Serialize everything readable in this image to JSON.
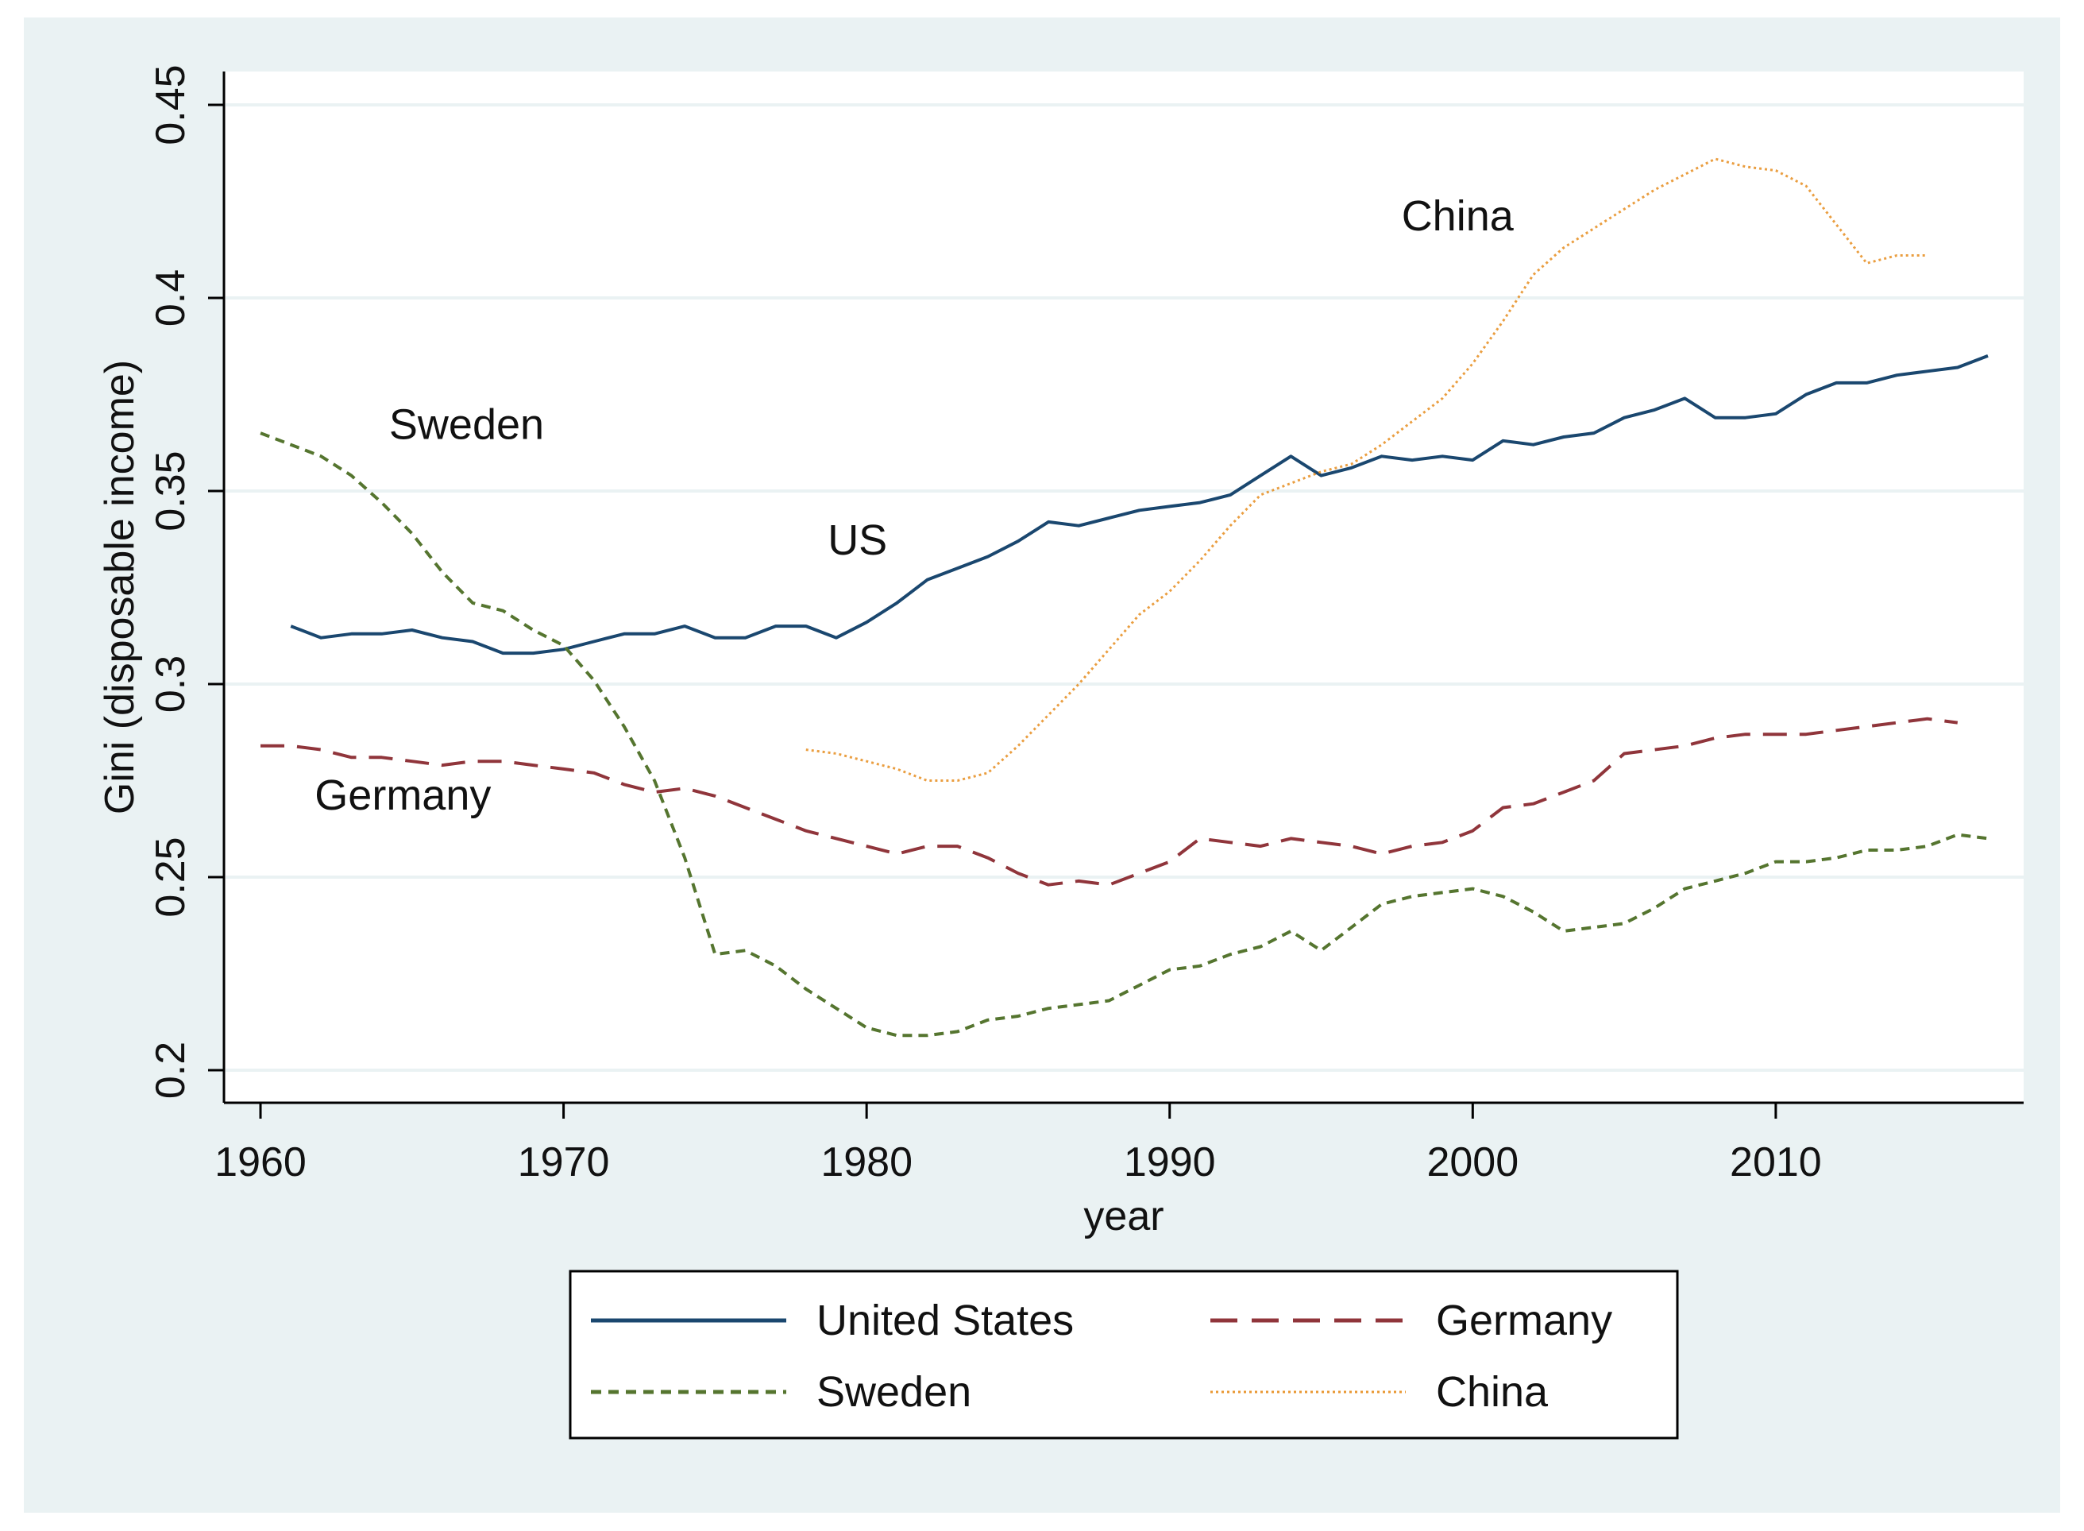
{
  "chart_data": {
    "type": "line",
    "title": "",
    "xlabel": "year",
    "ylabel": "Gini (disposable income)",
    "xlim": [
      1960,
      2017
    ],
    "ylim": [
      0.2,
      0.45
    ],
    "x_ticks": [
      1960,
      1970,
      1980,
      1990,
      2000,
      2010
    ],
    "x_tick_labels": [
      "1960",
      "1970",
      "1980",
      "1990",
      "2000",
      "2010"
    ],
    "y_ticks": [
      0.2,
      0.25,
      0.3,
      0.35,
      0.4,
      0.45
    ],
    "y_tick_labels": [
      "0.2",
      "0.25",
      "0.3",
      "0.35",
      "0.4",
      "0.45"
    ],
    "grid": true,
    "legend_position": "bottom",
    "colors": {
      "background": "#eaf2f3",
      "plot_background": "#ffffff",
      "grid": "#eaf2f3",
      "axis": "#000000",
      "us": "#1a476f",
      "germany": "#90353b",
      "sweden": "#55752f",
      "china": "#e37e00"
    },
    "series": [
      {
        "name": "United States",
        "label": "US",
        "style": "solid",
        "x": [
          1961,
          1962,
          1963,
          1964,
          1965,
          1966,
          1967,
          1968,
          1969,
          1970,
          1971,
          1972,
          1973,
          1974,
          1975,
          1976,
          1977,
          1978,
          1979,
          1980,
          1981,
          1982,
          1983,
          1984,
          1985,
          1986,
          1987,
          1988,
          1989,
          1990,
          1991,
          1992,
          1993,
          1994,
          1995,
          1996,
          1997,
          1998,
          1999,
          2000,
          2001,
          2002,
          2003,
          2004,
          2005,
          2006,
          2007,
          2008,
          2009,
          2010,
          2011,
          2012,
          2013,
          2014,
          2015,
          2016,
          2017
        ],
        "values": [
          0.315,
          0.312,
          0.313,
          0.313,
          0.314,
          0.312,
          0.311,
          0.308,
          0.308,
          0.309,
          0.311,
          0.313,
          0.313,
          0.315,
          0.312,
          0.312,
          0.315,
          0.315,
          0.312,
          0.316,
          0.321,
          0.327,
          0.33,
          0.333,
          0.337,
          0.342,
          0.341,
          0.343,
          0.345,
          0.346,
          0.347,
          0.349,
          0.354,
          0.359,
          0.354,
          0.356,
          0.359,
          0.358,
          0.359,
          0.358,
          0.363,
          0.362,
          0.364,
          0.365,
          0.369,
          0.371,
          0.374,
          0.369,
          0.369,
          0.37,
          0.375,
          0.378,
          0.378,
          0.38,
          0.381,
          0.382,
          0.385
        ]
      },
      {
        "name": "Germany",
        "label": "Germany",
        "style": "dashed",
        "x": [
          1960,
          1961,
          1962,
          1963,
          1964,
          1965,
          1966,
          1967,
          1968,
          1969,
          1970,
          1971,
          1972,
          1973,
          1974,
          1975,
          1976,
          1977,
          1978,
          1979,
          1980,
          1981,
          1982,
          1983,
          1984,
          1985,
          1986,
          1987,
          1988,
          1989,
          1990,
          1991,
          1992,
          1993,
          1994,
          1995,
          1996,
          1997,
          1998,
          1999,
          2000,
          2001,
          2002,
          2003,
          2004,
          2005,
          2006,
          2007,
          2008,
          2009,
          2010,
          2011,
          2012,
          2013,
          2014,
          2015,
          2016
        ],
        "values": [
          0.284,
          0.284,
          0.283,
          0.281,
          0.281,
          0.28,
          0.279,
          0.28,
          0.28,
          0.279,
          0.278,
          0.277,
          0.274,
          0.272,
          0.273,
          0.271,
          0.268,
          0.265,
          0.262,
          0.26,
          0.258,
          0.256,
          0.258,
          0.258,
          0.255,
          0.251,
          0.248,
          0.249,
          0.248,
          0.251,
          0.254,
          0.26,
          0.259,
          0.258,
          0.26,
          0.259,
          0.258,
          0.256,
          0.258,
          0.259,
          0.262,
          0.268,
          0.269,
          0.272,
          0.275,
          0.282,
          0.283,
          0.284,
          0.286,
          0.287,
          0.287,
          0.287,
          0.288,
          0.289,
          0.29,
          0.291,
          0.29
        ]
      },
      {
        "name": "Sweden",
        "label": "Sweden",
        "style": "short-dashed",
        "x": [
          1960,
          1961,
          1962,
          1963,
          1964,
          1965,
          1966,
          1967,
          1968,
          1969,
          1970,
          1971,
          1972,
          1973,
          1974,
          1975,
          1976,
          1977,
          1978,
          1979,
          1980,
          1981,
          1982,
          1983,
          1984,
          1985,
          1986,
          1987,
          1988,
          1989,
          1990,
          1991,
          1992,
          1993,
          1994,
          1995,
          1996,
          1997,
          1998,
          1999,
          2000,
          2001,
          2002,
          2003,
          2004,
          2005,
          2006,
          2007,
          2008,
          2009,
          2010,
          2011,
          2012,
          2013,
          2014,
          2015,
          2016,
          2017
        ],
        "values": [
          0.365,
          0.362,
          0.359,
          0.354,
          0.347,
          0.339,
          0.329,
          0.321,
          0.319,
          0.314,
          0.31,
          0.301,
          0.289,
          0.275,
          0.255,
          0.23,
          0.231,
          0.227,
          0.221,
          0.216,
          0.211,
          0.209,
          0.209,
          0.21,
          0.213,
          0.214,
          0.216,
          0.217,
          0.218,
          0.222,
          0.226,
          0.227,
          0.23,
          0.232,
          0.236,
          0.231,
          0.237,
          0.243,
          0.245,
          0.246,
          0.247,
          0.245,
          0.241,
          0.236,
          0.237,
          0.238,
          0.242,
          0.247,
          0.249,
          0.251,
          0.254,
          0.254,
          0.255,
          0.257,
          0.257,
          0.258,
          0.261,
          0.26
        ]
      },
      {
        "name": "China",
        "label": "China",
        "style": "dotted",
        "x": [
          1978,
          1979,
          1980,
          1981,
          1982,
          1983,
          1984,
          1985,
          1986,
          1987,
          1988,
          1989,
          1990,
          1991,
          1992,
          1993,
          1994,
          1995,
          1996,
          1997,
          1998,
          1999,
          2000,
          2001,
          2002,
          2003,
          2004,
          2005,
          2006,
          2007,
          2008,
          2009,
          2010,
          2011,
          2012,
          2013,
          2014,
          2015
        ],
        "values": [
          0.283,
          0.282,
          0.28,
          0.278,
          0.275,
          0.275,
          0.277,
          0.284,
          0.292,
          0.3,
          0.309,
          0.318,
          0.324,
          0.332,
          0.341,
          0.349,
          0.352,
          0.355,
          0.357,
          0.362,
          0.368,
          0.374,
          0.383,
          0.394,
          0.406,
          0.413,
          0.418,
          0.423,
          0.428,
          0.432,
          0.436,
          0.434,
          0.433,
          0.429,
          0.419,
          0.409,
          0.411,
          0.411
        ]
      }
    ],
    "annotations": [
      {
        "text": "China",
        "x": 1999.5,
        "y": 0.4175
      },
      {
        "text": "Sweden",
        "x": 1966.8,
        "y": 0.3635
      },
      {
        "text": "US",
        "x": 1979.7,
        "y": 0.3335
      },
      {
        "text": "Germany",
        "x": 1964.7,
        "y": 0.2675
      }
    ]
  }
}
